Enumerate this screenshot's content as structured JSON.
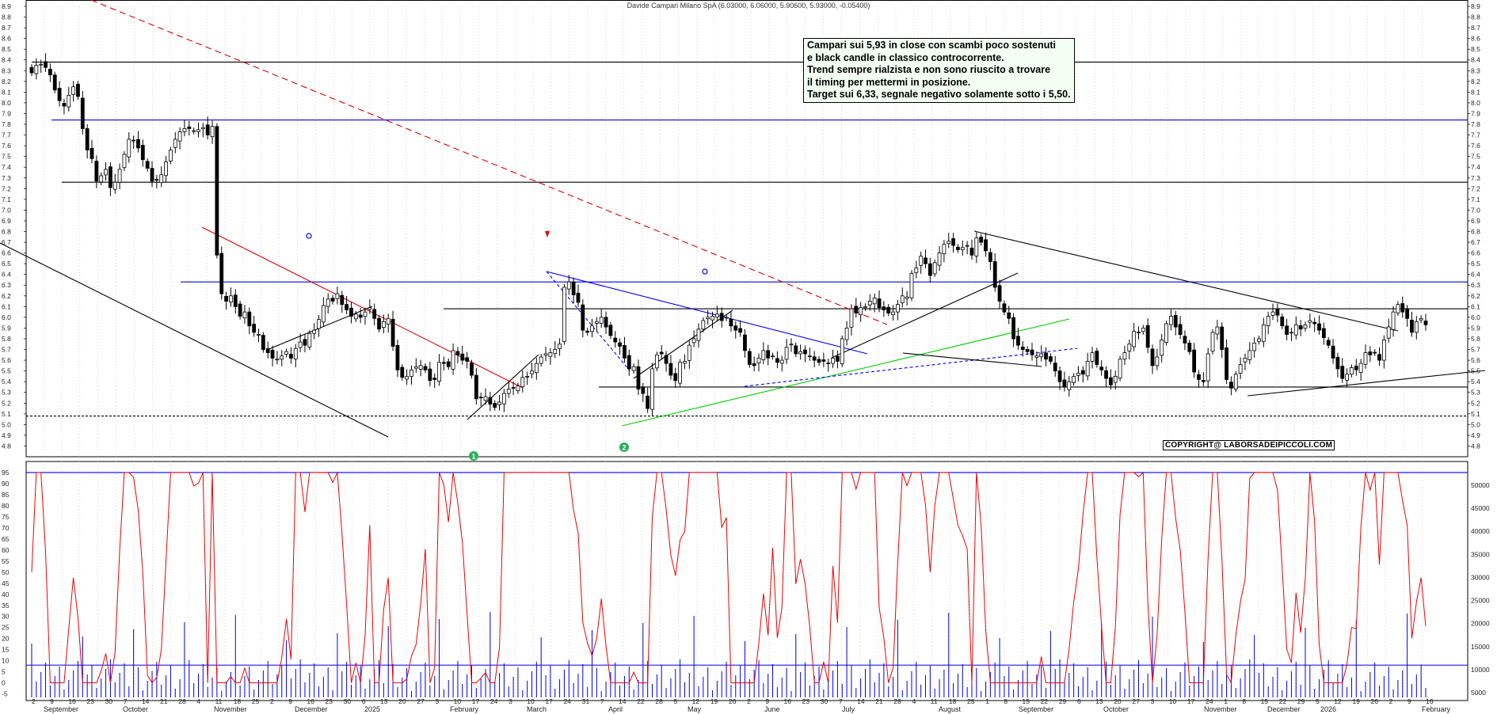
{
  "chart_data": [
    {
      "type": "candlestick",
      "title": "Davide Campari Milano SpA (6.03000, 6.06000, 5.90600, 5.93000, -0.05400)",
      "y_axis": {
        "min": 4.7,
        "max": 8.9,
        "step": 0.1,
        "side": "right",
        "ticks": [
          "8.9",
          "8.8",
          "8.7",
          "8.6",
          "8.5",
          "8.4",
          "8.3",
          "8.2",
          "8.1",
          "8.0",
          "7.9",
          "7.8",
          "7.7",
          "7.6",
          "7.5",
          "7.4",
          "7.3",
          "7.2",
          "7.1",
          "7.0",
          "6.9",
          "6.8",
          "6.7",
          "6.6",
          "6.5",
          "6.4",
          "6.3",
          "6.2",
          "6.1",
          "6.0",
          "5.9",
          "5.8",
          "5.7",
          "5.6",
          "5.5",
          "5.4",
          "5.3",
          "5.2",
          "5.1",
          "5.0",
          "4.9",
          "4.8"
        ]
      },
      "horizontal_levels": [
        {
          "value": 8.38,
          "color": "#000000",
          "style": "solid"
        },
        {
          "value": 7.84,
          "color": "#0000ff",
          "style": "solid"
        },
        {
          "value": 7.26,
          "color": "#000000",
          "style": "solid"
        },
        {
          "value": 6.33,
          "color": "#0000ff",
          "style": "solid"
        },
        {
          "value": 6.08,
          "color": "#000000",
          "style": "solid"
        },
        {
          "value": 5.35,
          "color": "#000000",
          "style": "solid"
        },
        {
          "value": 5.08,
          "color": "#000000",
          "style": "dashed"
        }
      ],
      "annotation": {
        "lines": [
          "Campari sui 5,93 in close con scambi poco sostenuti",
          "e black candle in classico controcorrente.",
          "Trend sempre rialzista e non sono riuscito a trovare",
          "il timing per mettermi in posizione.",
          "Target sui 6,33, segnale negativo solamente sotto i 5,50."
        ]
      },
      "wave_labels": [
        "1",
        "2"
      ],
      "copyright": "COPYRIGHT@ LABORSADEIPICCOLI.COM",
      "closes": [
        8.28,
        8.35,
        8.36,
        8.33,
        8.26,
        8.12,
        8.02,
        7.97,
        8.07,
        8.15,
        8.06,
        7.76,
        7.56,
        7.48,
        7.27,
        7.32,
        7.38,
        7.21,
        7.26,
        7.38,
        7.52,
        7.66,
        7.65,
        7.58,
        7.47,
        7.39,
        7.27,
        7.28,
        7.33,
        7.45,
        7.56,
        7.66,
        7.73,
        7.76,
        7.76,
        7.74,
        7.75,
        7.77,
        7.7,
        7.78,
        6.58,
        6.22,
        6.15,
        6.2,
        6.1,
        6.01,
        6.05,
        5.92,
        5.86,
        5.84,
        5.7,
        5.67,
        5.62,
        5.61,
        5.64,
        5.68,
        5.62,
        5.71,
        5.77,
        5.74,
        5.85,
        5.88,
        5.98,
        6.11,
        6.17,
        6.15,
        6.22,
        6.12,
        6.07,
        6.01,
        6.03,
        6.0,
        6.05,
        6.09,
        5.99,
        5.89,
        5.96,
        5.99,
        5.73,
        5.51,
        5.44,
        5.45,
        5.51,
        5.54,
        5.55,
        5.51,
        5.41,
        5.42,
        5.58,
        5.57,
        5.54,
        5.69,
        5.65,
        5.6,
        5.59,
        5.46,
        5.24,
        5.25,
        5.26,
        5.19,
        5.16,
        5.21,
        5.29,
        5.33,
        5.34,
        5.36,
        5.44,
        5.45,
        5.5,
        5.57,
        5.63,
        5.66,
        5.67,
        5.7,
        5.75,
        6.28,
        6.33,
        6.21,
        6.14,
        5.88,
        5.86,
        5.92,
        5.96,
        6.0,
        5.91,
        5.83,
        5.77,
        5.73,
        5.62,
        5.52,
        5.54,
        5.33,
        5.29,
        5.15,
        5.52,
        5.65,
        5.66,
        5.57,
        5.46,
        5.41,
        5.58,
        5.59,
        5.74,
        5.8,
        5.89,
        5.97,
        6.0,
        6.01,
        6.03,
        5.97,
        6.0,
        5.92,
        5.88,
        5.86,
        5.69,
        5.56,
        5.55,
        5.62,
        5.69,
        5.62,
        5.64,
        5.58,
        5.6,
        5.72,
        5.75,
        5.66,
        5.68,
        5.66,
        5.64,
        5.6,
        5.58,
        5.59,
        5.57,
        5.62,
        5.59,
        5.8,
        5.9,
        6.08,
        6.04,
        6.09,
        6.1,
        6.15,
        6.18,
        6.09,
        6.07,
        6.04,
        6.05,
        6.12,
        6.2,
        6.19,
        6.41,
        6.46,
        6.57,
        6.5,
        6.39,
        6.51,
        6.6,
        6.68,
        6.71,
        6.67,
        6.63,
        6.65,
        6.67,
        6.58,
        6.74,
        6.7,
        6.62,
        6.52,
        6.28,
        6.15,
        6.05,
        5.99,
        5.8,
        5.74,
        5.7,
        5.68,
        5.65,
        5.64,
        5.66,
        5.61,
        5.59,
        5.5,
        5.4,
        5.35,
        5.4,
        5.45,
        5.48,
        5.47,
        5.59,
        5.67,
        5.56,
        5.51,
        5.43,
        5.37,
        5.45,
        5.61,
        5.67,
        5.75,
        5.87,
        5.86,
        5.9,
        5.72,
        5.55,
        5.63,
        5.79,
        5.94,
        6.01,
        5.91,
        5.84,
        5.76,
        5.68,
        5.49,
        5.42,
        5.4,
        5.66,
        5.86,
        5.91,
        5.7,
        5.42,
        5.34,
        5.47,
        5.56,
        5.62,
        5.69,
        5.76,
        5.8,
        5.93,
        6.01,
        6.05,
        6.02,
        5.92,
        5.84,
        5.86,
        5.93,
        5.89,
        5.93,
        5.97,
        5.94,
        5.88,
        5.81,
        5.74,
        5.62,
        5.52,
        5.43,
        5.47,
        5.53,
        5.51,
        5.57,
        5.67,
        5.65,
        5.67,
        5.6,
        5.79,
        5.91,
        6.05,
        6.12,
        6.05,
        5.99,
        5.86,
        5.96,
        5.99,
        5.93
      ],
      "panel2_type": "oscillator + volume",
      "panel2_left_axis": [
        "95",
        "90",
        "85",
        "80",
        "75",
        "70",
        "65",
        "60",
        "55",
        "50",
        "45",
        "40",
        "35",
        "30",
        "25",
        "20",
        "15",
        "10",
        "5",
        "0",
        "-5"
      ],
      "panel2_right_axis": [
        "50000",
        "45000",
        "40000",
        "35000",
        "30000",
        "25000",
        "20000",
        "15000",
        "10000",
        "5000"
      ],
      "panel2_levels": [
        95,
        8
      ],
      "x_month_labels": [
        "September",
        "October",
        "November",
        "December",
        "2025",
        "February",
        "March",
        "April",
        "May",
        "June",
        "July",
        "August",
        "September",
        "October",
        "November",
        "December",
        "2026",
        "February"
      ],
      "x_day_labels": [
        "2",
        "9",
        "16",
        "23",
        "30",
        "7",
        "14",
        "21",
        "28",
        "4",
        "11",
        "18",
        "25",
        "2",
        "9",
        "16",
        "23",
        "30",
        "6",
        "13",
        "20",
        "27",
        "3",
        "10",
        "17",
        "24",
        "3",
        "10",
        "17",
        "24",
        "31",
        "7",
        "14",
        "22",
        "28",
        "5",
        "12",
        "19",
        "26",
        "2",
        "9",
        "16",
        "23",
        "30",
        "7",
        "14",
        "21",
        "28",
        "4",
        "11",
        "18",
        "25",
        "1",
        "8",
        "15",
        "22",
        "29",
        "6",
        "13",
        "20",
        "27",
        "3",
        "10",
        "17",
        "24",
        "1",
        "8",
        "15",
        "22",
        "29",
        "5",
        "12",
        "19",
        "26",
        "2",
        "9",
        "16"
      ]
    }
  ]
}
